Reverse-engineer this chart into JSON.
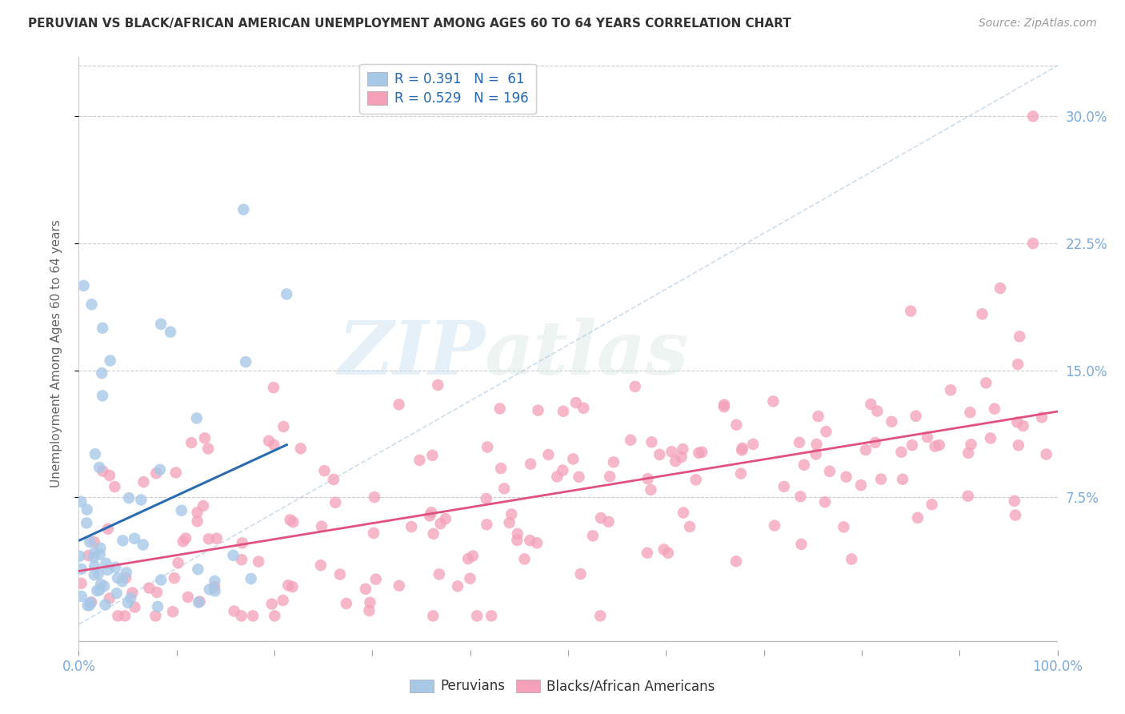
{
  "title": "PERUVIAN VS BLACK/AFRICAN AMERICAN UNEMPLOYMENT AMONG AGES 60 TO 64 YEARS CORRELATION CHART",
  "source": "Source: ZipAtlas.com",
  "ylabel": "Unemployment Among Ages 60 to 64 years",
  "yticks": [
    "7.5%",
    "15.0%",
    "22.5%",
    "30.0%"
  ],
  "ytick_vals": [
    0.075,
    0.15,
    0.225,
    0.3
  ],
  "xlim": [
    0.0,
    1.0
  ],
  "ylim": [
    -0.015,
    0.335
  ],
  "legend_blue_R": "0.391",
  "legend_blue_N": "61",
  "legend_pink_R": "0.529",
  "legend_pink_N": "196",
  "blue_color": "#a8c8e8",
  "pink_color": "#f4a0b8",
  "blue_line_color": "#2b6cb0",
  "pink_line_color": "#e05080",
  "watermark_zip": "ZIP",
  "watermark_atlas": "atlas",
  "grid_color": "#cccccc",
  "border_color": "#cccccc",
  "tick_color": "#7aabdb",
  "ylabel_color": "#666666",
  "title_color": "#333333",
  "source_color": "#999999"
}
